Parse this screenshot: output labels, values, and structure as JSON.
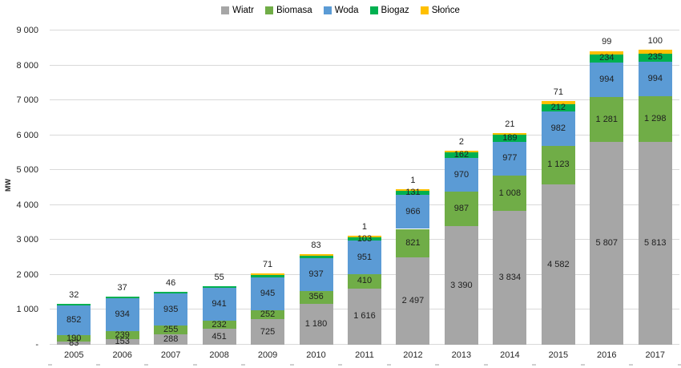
{
  "chart_data": {
    "type": "bar",
    "stacked": true,
    "title": "",
    "xlabel": "",
    "ylabel": "MW",
    "ylim": [
      0,
      9000
    ],
    "ytick_step": 1000,
    "ytick_labels": [
      "-",
      "1 000",
      "2 000",
      "3 000",
      "4 000",
      "5 000",
      "6 000",
      "7 000",
      "8 000",
      "9 000"
    ],
    "grid": "horizontal",
    "legend_position": "top",
    "categories": [
      "2005",
      "2006",
      "2007",
      "2008",
      "2009",
      "2010",
      "2011",
      "2012",
      "2013",
      "2014",
      "2015",
      "2016",
      "2017"
    ],
    "series": [
      {
        "name": "Wiatr",
        "color": "#a6a6a6",
        "values": [
          83,
          153,
          288,
          451,
          725,
          1180,
          1616,
          2497,
          3390,
          3834,
          4582,
          5807,
          5813
        ]
      },
      {
        "name": "Biomasa",
        "color": "#70ad47",
        "values": [
          190,
          239,
          255,
          232,
          252,
          356,
          410,
          821,
          987,
          1008,
          1123,
          1281,
          1298
        ]
      },
      {
        "name": "Woda",
        "color": "#5b9bd5",
        "values": [
          852,
          934,
          935,
          941,
          945,
          937,
          951,
          966,
          970,
          977,
          982,
          994,
          994
        ]
      },
      {
        "name": "Biogaz",
        "color": "#00b050",
        "values": [
          32,
          37,
          46,
          55,
          71,
          83,
          103,
          131,
          162,
          189,
          212,
          234,
          235
        ]
      },
      {
        "name": "Słońce",
        "color": "#ffc000",
        "values": [
          0,
          0,
          0,
          0,
          1,
          1,
          1,
          1,
          2,
          21,
          71,
          99,
          100
        ]
      }
    ],
    "segment_labels": {
      "Wiatr": [
        "83",
        "153",
        "288",
        "451",
        "725",
        "1 180",
        "1 616",
        "2 497",
        "3 390",
        "3 834",
        "4 582",
        "5 807",
        "5 813"
      ],
      "Biomasa": [
        "190",
        "239",
        "255",
        "232",
        "252",
        "356",
        "410",
        "821",
        "987",
        "1 008",
        "1 123",
        "1 281",
        "1 298"
      ],
      "Woda": [
        "852",
        "934",
        "935",
        "941",
        "945",
        "937",
        "951",
        "966",
        "970",
        "977",
        "982",
        "994",
        "994"
      ],
      "Biogaz": [
        "",
        "",
        "",
        "",
        "",
        "",
        "103",
        "131",
        "162",
        "189",
        "212",
        "234",
        "235"
      ],
      "Słońce": [
        "",
        "",
        "",
        "",
        "",
        "",
        "",
        "",
        "",
        "",
        "",
        "",
        ""
      ]
    },
    "above_bar_labels": [
      "32",
      "37",
      "46",
      "55",
      "71",
      "83",
      "1",
      "1",
      "2",
      "21",
      "71",
      "99",
      "100"
    ]
  },
  "colors": {
    "gridline": "#d9d9d9",
    "axis_text": "#262626",
    "value_text": "#1f1f1f"
  }
}
